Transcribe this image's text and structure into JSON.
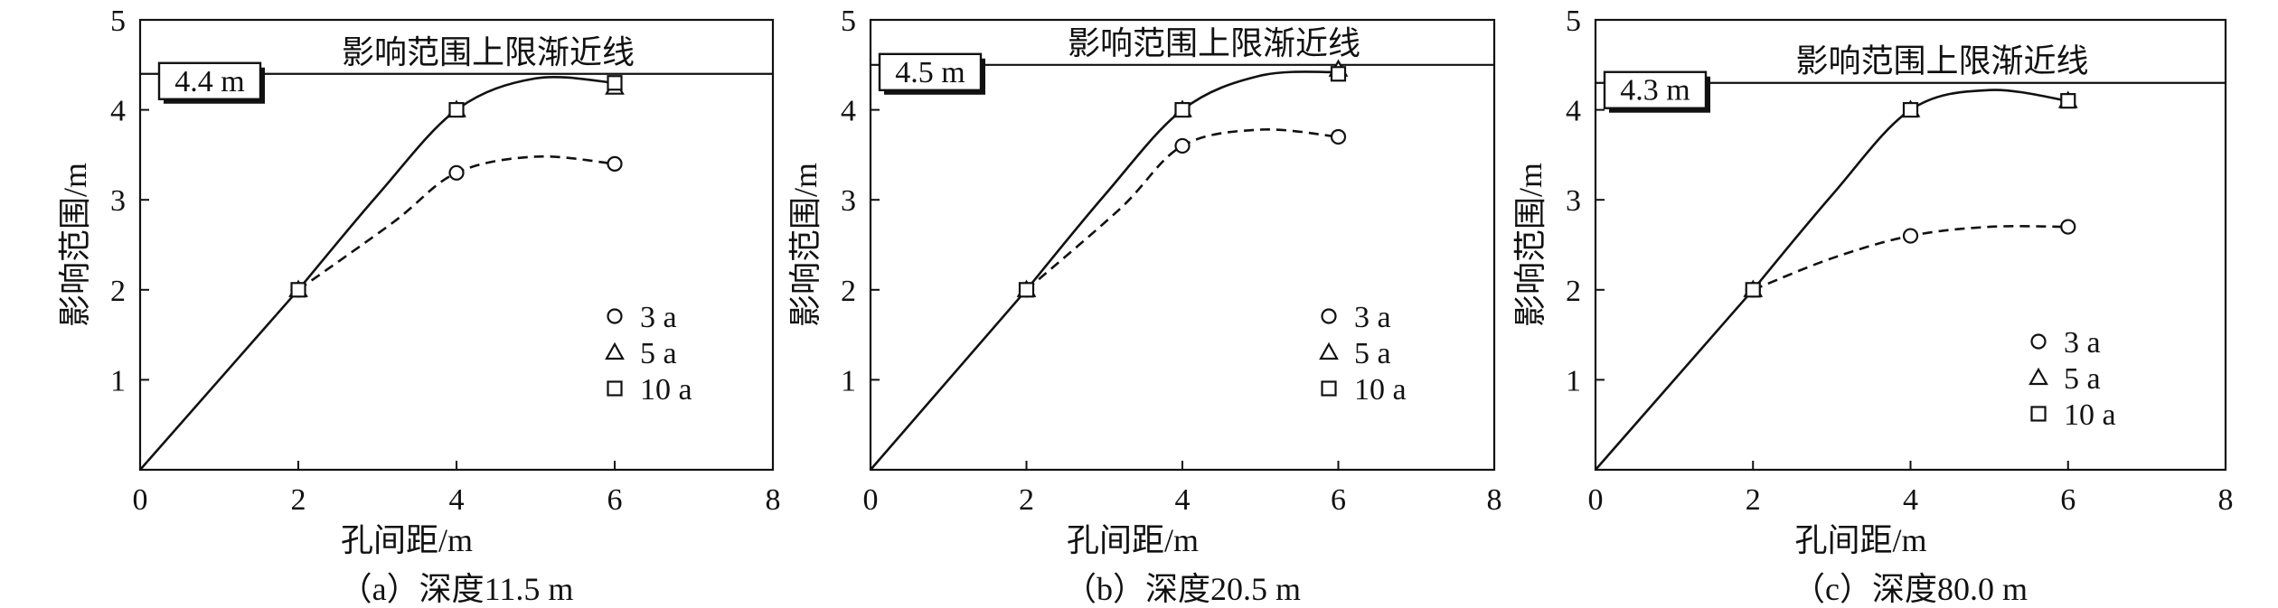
{
  "chart_data": [
    {
      "type": "line",
      "caption": "（a）深度11.5 m",
      "xlabel": "孔间距/m",
      "ylabel": "影响范围/m",
      "xlim": [
        0,
        8
      ],
      "ylim": [
        0,
        5
      ],
      "xticks": [
        "0",
        "2",
        "4",
        "6",
        "8"
      ],
      "yticks": [
        "1",
        "2",
        "3",
        "4",
        "5"
      ],
      "asymptote": {
        "value": 4.4,
        "label": "影响范围上限渐近线",
        "value_label": "4.4 m"
      },
      "legend": [
        "3 a",
        "5 a",
        "10 a"
      ],
      "series": [
        {
          "name": "3 a",
          "marker": "circle",
          "x": [
            2,
            4,
            6
          ],
          "y": [
            2.0,
            3.3,
            3.4
          ]
        },
        {
          "name": "5 a",
          "marker": "triangle",
          "x": [
            2,
            4,
            6
          ],
          "y": [
            2.0,
            4.0,
            4.25
          ]
        },
        {
          "name": "10 a",
          "marker": "square",
          "x": [
            2,
            4,
            6
          ],
          "y": [
            2.0,
            4.0,
            4.3
          ]
        }
      ],
      "curves": [
        {
          "style": "solid",
          "x": [
            0,
            2
          ],
          "y": [
            0,
            2
          ]
        },
        {
          "style": "dashed",
          "x": [
            2,
            3.2,
            4,
            5,
            6
          ],
          "y": [
            2.0,
            2.75,
            3.3,
            3.48,
            3.4
          ]
        },
        {
          "style": "solid",
          "x": [
            2,
            3,
            4,
            5,
            6
          ],
          "y": [
            2.0,
            3.05,
            4.0,
            4.35,
            4.3
          ]
        }
      ]
    },
    {
      "type": "line",
      "caption": "（b）深度20.5 m",
      "xlabel": "孔间距/m",
      "ylabel": "影响范围/m",
      "xlim": [
        0,
        8
      ],
      "ylim": [
        0,
        5
      ],
      "xticks": [
        "0",
        "2",
        "4",
        "6",
        "8"
      ],
      "yticks": [
        "1",
        "2",
        "3",
        "4",
        "5"
      ],
      "asymptote": {
        "value": 4.5,
        "label": "影响范围上限渐近线",
        "value_label": "4.5 m"
      },
      "legend": [
        "3 a",
        "5 a",
        "10 a"
      ],
      "series": [
        {
          "name": "3 a",
          "marker": "circle",
          "x": [
            2,
            4,
            6
          ],
          "y": [
            2.0,
            3.6,
            3.7
          ]
        },
        {
          "name": "5 a",
          "marker": "triangle",
          "x": [
            2,
            4,
            6
          ],
          "y": [
            2.0,
            4.0,
            4.45
          ]
        },
        {
          "name": "10 a",
          "marker": "square",
          "x": [
            2,
            4,
            6
          ],
          "y": [
            2.0,
            4.0,
            4.4
          ]
        }
      ],
      "curves": [
        {
          "style": "solid",
          "x": [
            0,
            2
          ],
          "y": [
            0,
            2
          ]
        },
        {
          "style": "dashed",
          "x": [
            2,
            3.2,
            4,
            5,
            6
          ],
          "y": [
            2.0,
            2.9,
            3.6,
            3.78,
            3.7
          ]
        },
        {
          "style": "solid",
          "x": [
            2,
            3,
            4,
            5,
            6
          ],
          "y": [
            2.0,
            3.05,
            4.0,
            4.38,
            4.42
          ]
        }
      ]
    },
    {
      "type": "line",
      "caption": "（c）深度80.0 m",
      "xlabel": "孔间距/m",
      "ylabel": "影响范围/m",
      "xlim": [
        0,
        8
      ],
      "ylim": [
        0,
        5
      ],
      "xticks": [
        "0",
        "2",
        "4",
        "6",
        "8"
      ],
      "yticks": [
        "1",
        "2",
        "3",
        "4",
        "5"
      ],
      "asymptote": {
        "value": 4.3,
        "label": "影响范围上限渐近线",
        "value_label": "4.3 m"
      },
      "legend": [
        "3 a",
        "5 a",
        "10 a"
      ],
      "series": [
        {
          "name": "3 a",
          "marker": "circle",
          "x": [
            2,
            4,
            6
          ],
          "y": [
            2.0,
            2.6,
            2.7
          ]
        },
        {
          "name": "5 a",
          "marker": "triangle",
          "x": [
            2,
            4,
            6
          ],
          "y": [
            2.0,
            4.0,
            4.1
          ]
        },
        {
          "name": "10 a",
          "marker": "square",
          "x": [
            2,
            4,
            6
          ],
          "y": [
            2.0,
            4.0,
            4.1
          ]
        }
      ],
      "curves": [
        {
          "style": "solid",
          "x": [
            0,
            2
          ],
          "y": [
            0,
            2
          ]
        },
        {
          "style": "dashed",
          "x": [
            2,
            3,
            4,
            5,
            6
          ],
          "y": [
            2.0,
            2.35,
            2.6,
            2.7,
            2.7
          ]
        },
        {
          "style": "solid",
          "x": [
            2,
            3,
            4,
            5,
            6
          ],
          "y": [
            2.0,
            3.05,
            4.0,
            4.22,
            4.1
          ]
        }
      ]
    }
  ]
}
